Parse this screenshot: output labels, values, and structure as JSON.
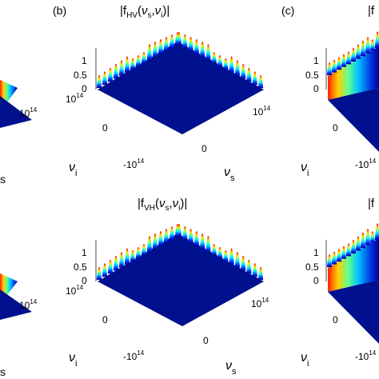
{
  "panel_labels": [
    "(b)",
    "(c)"
  ],
  "chart_data": [
    {
      "type": "surface",
      "panel": "(a) cropped",
      "title": "",
      "visible_tick_labels": {
        "nu_s": [
          "10^14",
          "s"
        ]
      },
      "zlim": [
        0,
        1
      ]
    },
    {
      "type": "surface",
      "panel": "(b)",
      "title": "|f_HV(ν_s, ν_i)|",
      "xlabel": "ν_s",
      "ylabel": "ν_i",
      "zticks": [
        "1",
        "0.5",
        "0"
      ],
      "nu_s_ticks": [
        "-10^14",
        "0",
        "10^14"
      ],
      "nu_i_ticks": [
        "-10^14",
        "0",
        "10^14"
      ],
      "zlim": [
        0,
        1
      ],
      "colormap": "jet"
    },
    {
      "type": "surface",
      "panel": "(b) lower",
      "title": "|f_VH(ν_s, ν_i)|",
      "xlabel": "ν_s",
      "ylabel": "ν_i",
      "zticks": [
        "1",
        "0.5",
        "0"
      ],
      "nu_s_ticks": [
        "-10^14",
        "0",
        "10^14"
      ],
      "nu_i_ticks": [
        "-10^14",
        "0",
        "10^14"
      ],
      "zlim": [
        0,
        1
      ],
      "colormap": "jet"
    },
    {
      "type": "surface",
      "panel": "(c) cropped",
      "title": "|f",
      "xlabel": "",
      "ylabel": "ν_i",
      "zticks": [
        "1",
        "0.5",
        "0"
      ],
      "nu_i_ticks": [
        "-10^14",
        "0"
      ],
      "zlim": [
        0,
        1
      ],
      "colormap": "jet"
    }
  ],
  "text": {
    "mantissa": "10",
    "exponent": "14",
    "neg_mantissa": "-10",
    "zero": "0",
    "z_1": "1",
    "z_05": "0.5",
    "z_0": "0",
    "nu": "ν",
    "sub_s": "s",
    "sub_i": "i",
    "title_hv_open": "|f",
    "title_hv_sub": "HV",
    "title_vh_sub": "VH",
    "title_args_open": "(",
    "title_comma": ",",
    "title_close": ")|"
  }
}
